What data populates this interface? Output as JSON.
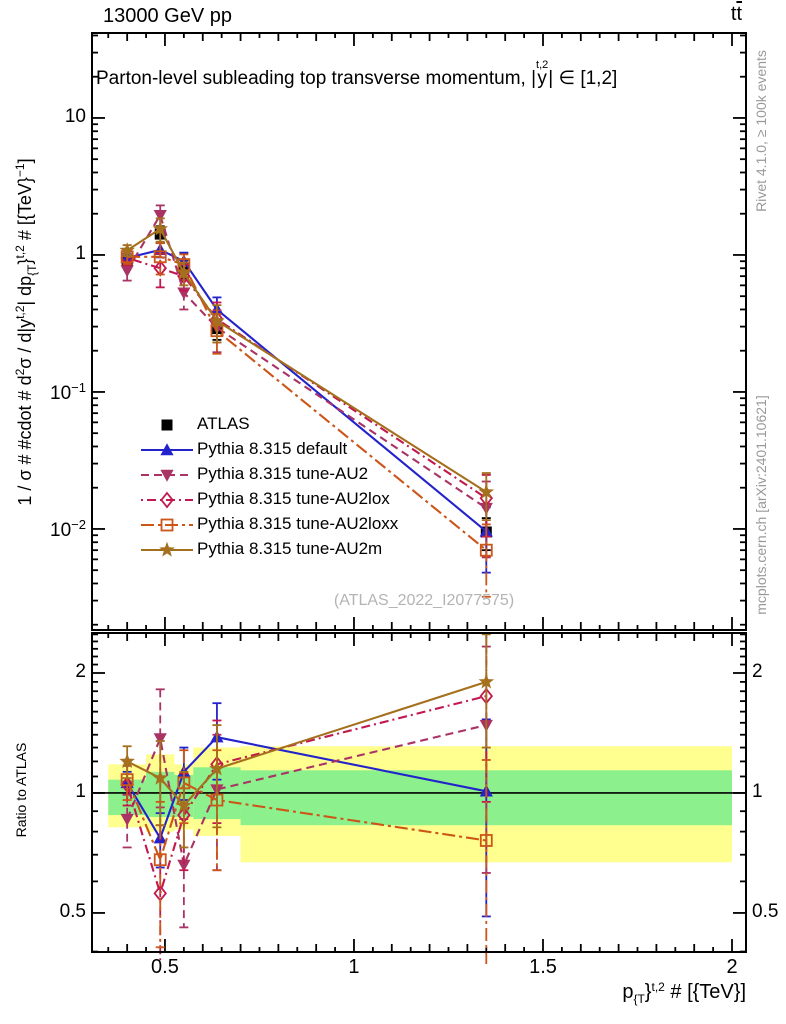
{
  "header": {
    "beam_label": "13000 GeV pp"
  },
  "process_segments": [
    {
      "t": "t"
    },
    {
      "bar": "t"
    }
  ],
  "title_segments": [
    {
      "t": "Parton-level subleading top transverse momentum, |"
    },
    {
      "stack": {
        "top": "t,2",
        "base": "y"
      }
    },
    {
      "t": "| ∈ [1,2]"
    }
  ],
  "axis_labels": {
    "ylabel_segments": [
      {
        "t": "1 / σ # #cdot # d"
      },
      {
        "sup": "2"
      },
      {
        "t": "σ / d|y"
      },
      {
        "sup": "t,2"
      },
      {
        "t": "| dp"
      },
      {
        "sub": "{T"
      },
      {
        "t": "}"
      },
      {
        "sup": "t,2"
      },
      {
        "t": " # [{TeV}"
      },
      {
        "sup": "−1"
      },
      {
        "t": "]"
      }
    ],
    "xlabel_segments": [
      {
        "t": "p"
      },
      {
        "sub": "{T"
      },
      {
        "t": "}"
      },
      {
        "sup": "t,2"
      },
      {
        "t": " # [{TeV}]"
      }
    ],
    "ratio_ylabel": "Ratio to ATLAS"
  },
  "side_notes": {
    "top": "Rivet 4.1.0, ≥ 100k events",
    "bottom": "mcplots.cern.ch [arXiv:2401.10621]"
  },
  "watermark": "(ATLAS_2022_I2077575)",
  "chart_data": {
    "type": "line",
    "title": "Parton-level subleading top transverse momentum, |y^{t,2}| ∈ [1,2]",
    "xlabel": "p_T^{t,2} [TeV]",
    "ylabel": "1/σ d²σ / d|y^{t,2}| dp_T^{t,2} [TeV^-1]",
    "legend_position": "inside-left-middle",
    "grid": false,
    "x": [
      0.4,
      0.4875,
      0.55,
      0.6375,
      1.35
    ],
    "x_bin_edges": [
      0.35,
      0.45,
      0.525,
      0.575,
      0.7,
      2.0
    ],
    "xlim": [
      0.307,
      2.037
    ],
    "x_minor_step": 0.05,
    "xticks": [
      {
        "v": 0.5,
        "t": "0.5"
      },
      {
        "v": 1,
        "t": "1"
      },
      {
        "v": 1.5,
        "t": "1.5"
      },
      {
        "v": 2,
        "t": "2"
      }
    ],
    "main_panel": {
      "yscale": "log",
      "ylim": [
        0.00183,
        41.7
      ],
      "yticks": [
        {
          "v": 10,
          "t": "10",
          "e": ""
        },
        {
          "v": 1,
          "t": "1",
          "e": ""
        },
        {
          "v": 0.1,
          "t": "10",
          "e": "−1"
        },
        {
          "v": 0.01,
          "t": "10",
          "e": "−2"
        }
      ],
      "series": [
        {
          "name": "atlas",
          "label": "ATLAS",
          "color": "#000000",
          "marker": "square",
          "fill": true,
          "line": "none",
          "values": [
            0.9,
            1.42,
            0.8,
            0.29,
            0.0095
          ],
          "errors": [
            0.09,
            0.2,
            0.12,
            0.05,
            0.0025
          ]
        },
        {
          "name": "pythia-default",
          "label": "Pythia 8.315 default",
          "color": "#2323cc",
          "marker": "triangle-up",
          "fill": true,
          "line": "solid",
          "values": [
            0.95,
            1.09,
            0.9,
            0.4,
            0.0096
          ],
          "errors": [
            0.07,
            0.13,
            0.14,
            0.09,
            0.0048
          ]
        },
        {
          "name": "pythia-au2",
          "label": "Pythia 8.315 tune-AU2",
          "color": "#aa3366",
          "marker": "triangle-down",
          "fill": true,
          "line": "dash",
          "values": [
            0.77,
            1.95,
            0.53,
            0.295,
            0.0142
          ],
          "errors": [
            0.12,
            0.35,
            0.13,
            0.1,
            0.008
          ]
        },
        {
          "name": "pythia-au2lox",
          "label": "Pythia 8.315 tune-AU2lox",
          "color": "#c2184e",
          "marker": "diamond",
          "fill": false,
          "line": "dashdot",
          "values": [
            0.95,
            0.8,
            0.7,
            0.34,
            0.0168
          ],
          "errors": [
            0.11,
            0.22,
            0.15,
            0.11,
            0.008
          ]
        },
        {
          "name": "pythia-au2loxx",
          "label": "Pythia 8.315 tune-AU2loxx",
          "color": "#cc5518",
          "marker": "square",
          "fill": false,
          "line": "longdashdot",
          "values": [
            0.97,
            0.97,
            0.85,
            0.28,
            0.007
          ],
          "errors": [
            0.11,
            0.25,
            0.16,
            0.09,
            0.0038
          ]
        },
        {
          "name": "pythia-au2m",
          "label": "Pythia 8.315 tune-AU2m",
          "color": "#a5701e",
          "marker": "star",
          "fill": true,
          "line": "solid",
          "values": [
            1.08,
            1.55,
            0.74,
            0.33,
            0.0186
          ],
          "errors": [
            0.1,
            0.3,
            0.14,
            0.1,
            0.007
          ]
        }
      ]
    },
    "ratio_panel": {
      "yscale": "log",
      "ylim": [
        0.399,
        2.52
      ],
      "yticks": [
        {
          "v": 2,
          "t": "2"
        },
        {
          "v": 1,
          "t": "1"
        },
        {
          "v": 0.5,
          "t": "0.5"
        }
      ],
      "reference_line": 1,
      "bands": {
        "yellow": {
          "color": "#ffff8f",
          "ranges": [
            [
              0.82,
              1.18
            ],
            [
              0.8,
              1.25
            ],
            [
              0.81,
              1.18
            ],
            [
              0.78,
              1.3
            ],
            [
              0.67,
              1.31
            ]
          ]
        },
        "green": {
          "color": "#8cf08c",
          "ranges": [
            [
              0.88,
              1.08
            ],
            [
              0.87,
              1.13
            ],
            [
              0.87,
              1.11
            ],
            [
              0.86,
              1.16
            ],
            [
              0.83,
              1.14
            ]
          ]
        }
      },
      "series": [
        {
          "name": "pythia-default",
          "values": [
            1.06,
            0.77,
            1.13,
            1.38,
            1.01
          ],
          "errors": [
            0.07,
            0.12,
            0.17,
            0.3,
            0.52
          ]
        },
        {
          "name": "pythia-au2",
          "values": [
            0.86,
            1.37,
            0.66,
            1.02,
            1.48
          ],
          "errors": [
            0.13,
            0.45,
            0.2,
            0.38,
            0.85
          ]
        },
        {
          "name": "pythia-au2lox",
          "values": [
            1.05,
            0.56,
            0.88,
            1.18,
            1.75
          ],
          "errors": [
            0.12,
            0.27,
            0.24,
            0.34,
            0.8
          ]
        },
        {
          "name": "pythia-au2loxx",
          "values": [
            1.08,
            0.68,
            1.06,
            0.96,
            0.76
          ],
          "errors": [
            0.12,
            0.27,
            0.22,
            0.32,
            0.45
          ]
        },
        {
          "name": "pythia-au2m",
          "values": [
            1.2,
            1.09,
            0.93,
            1.15,
            1.9
          ],
          "errors": [
            0.11,
            0.26,
            0.2,
            0.33,
            0.6
          ]
        }
      ]
    }
  }
}
